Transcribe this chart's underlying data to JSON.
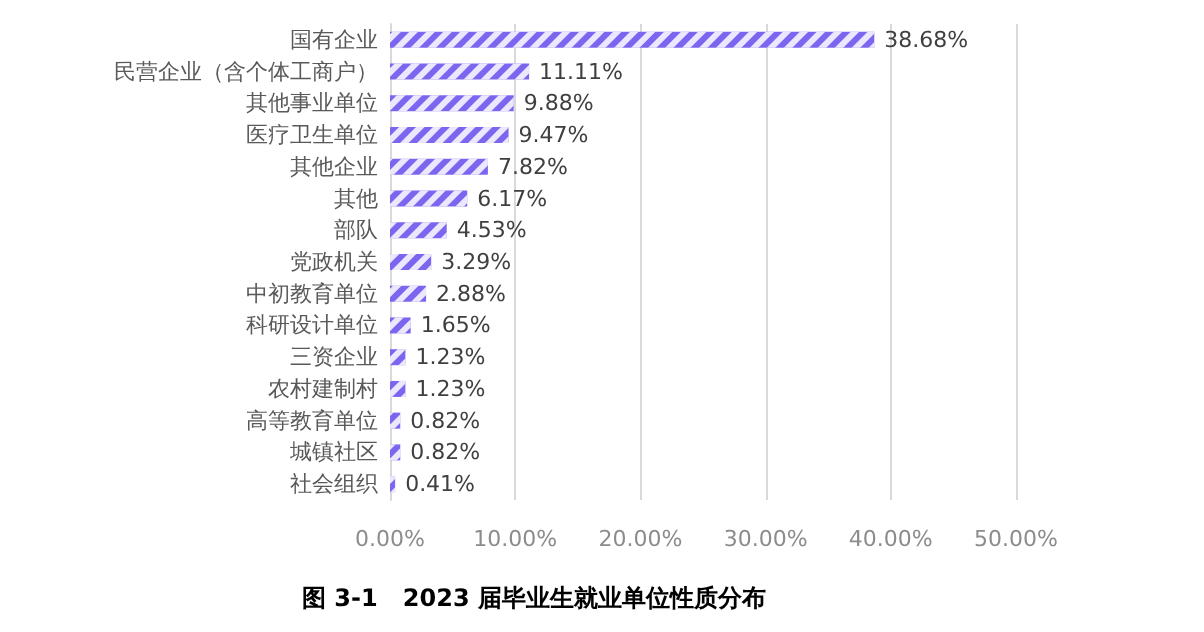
{
  "chart_data": {
    "type": "bar",
    "orientation": "horizontal",
    "title": "图 3-1   2023 届毕业生就业单位性质分布",
    "categories": [
      "国有企业",
      "民营企业（含个体工商户）",
      "其他事业单位",
      "医疗卫生单位",
      "其他企业",
      "其他",
      "部队",
      "党政机关",
      "中初教育单位",
      "科研设计单位",
      "三资企业",
      "农村建制村",
      "高等教育单位",
      "城镇社区",
      "社会组织"
    ],
    "values": [
      38.68,
      11.11,
      9.88,
      9.47,
      7.82,
      6.17,
      4.53,
      3.29,
      2.88,
      1.65,
      1.23,
      1.23,
      0.82,
      0.82,
      0.41
    ],
    "value_labels": [
      "38.68%",
      "11.11%",
      "9.88%",
      "9.47%",
      "7.82%",
      "6.17%",
      "4.53%",
      "3.29%",
      "2.88%",
      "1.65%",
      "1.23%",
      "1.23%",
      "0.82%",
      "0.82%",
      "0.41%"
    ],
    "color": "#7b66f0",
    "xlim": [
      0,
      50
    ],
    "xticks": [
      {
        "value": 0,
        "label": "0.00%"
      },
      {
        "value": 10,
        "label": "10.00%"
      },
      {
        "value": 20,
        "label": "20.00%"
      },
      {
        "value": 30,
        "label": "30.00%"
      },
      {
        "value": 40,
        "label": "40.00%"
      },
      {
        "value": 50,
        "label": "50.00%"
      }
    ],
    "grid": "x"
  }
}
